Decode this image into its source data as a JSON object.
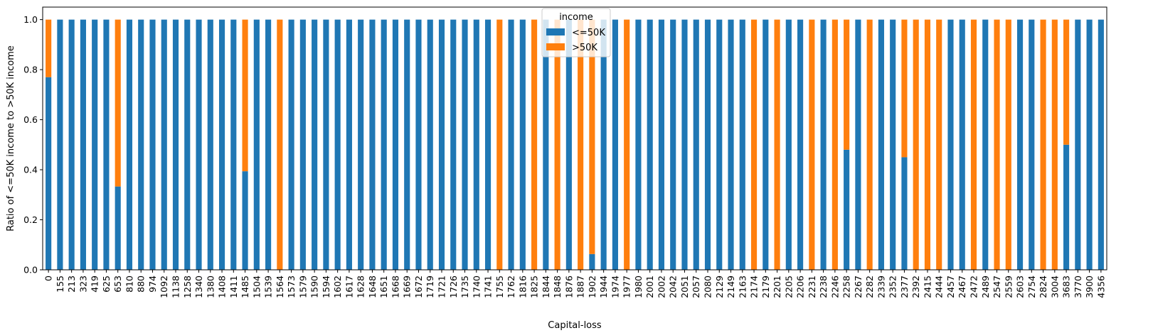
{
  "chart_data": {
    "type": "bar",
    "stacked": true,
    "xlabel": "Capital-loss",
    "ylabel": "Ratio of <=50K income to >50K income",
    "ylim": [
      0,
      1.05
    ],
    "yticks": [
      "0.0",
      "0.2",
      "0.4",
      "0.6",
      "0.8",
      "1.0"
    ],
    "grid": false,
    "legend": {
      "title": "income",
      "placement": "top-center"
    },
    "colors": {
      "le50k": "#1f77b4",
      "gt50k": "#ff7f0e"
    },
    "categories": [
      "0",
      "155",
      "213",
      "323",
      "419",
      "625",
      "653",
      "810",
      "880",
      "974",
      "1092",
      "1138",
      "1258",
      "1340",
      "1380",
      "1408",
      "1411",
      "1485",
      "1504",
      "1539",
      "1564",
      "1573",
      "1579",
      "1590",
      "1594",
      "1602",
      "1617",
      "1628",
      "1648",
      "1651",
      "1668",
      "1669",
      "1672",
      "1719",
      "1721",
      "1726",
      "1735",
      "1740",
      "1741",
      "1755",
      "1762",
      "1816",
      "1825",
      "1844",
      "1848",
      "1876",
      "1887",
      "1902",
      "1944",
      "1974",
      "1977",
      "1980",
      "2001",
      "2002",
      "2042",
      "2051",
      "2057",
      "2080",
      "2129",
      "2149",
      "2163",
      "2174",
      "2179",
      "2201",
      "2205",
      "2206",
      "2231",
      "2238",
      "2246",
      "2258",
      "2267",
      "2282",
      "2339",
      "2352",
      "2377",
      "2392",
      "2415",
      "2444",
      "2457",
      "2467",
      "2472",
      "2489",
      "2547",
      "2559",
      "2603",
      "2754",
      "2824",
      "3004",
      "3683",
      "3770",
      "3900",
      "4356"
    ],
    "series": [
      {
        "name": "<=50K",
        "values": [
          0.77,
          1,
          1,
          1,
          1,
          1,
          0.333,
          1,
          1,
          1,
          1,
          1,
          1,
          1,
          1,
          1,
          1,
          0.394,
          1,
          1,
          0,
          1,
          1,
          1,
          1,
          1,
          1,
          1,
          1,
          1,
          1,
          1,
          1,
          1,
          1,
          1,
          1,
          1,
          1,
          0,
          1,
          1,
          0,
          1,
          0,
          1,
          0,
          0.063,
          1,
          1,
          0,
          1,
          1,
          1,
          1,
          1,
          1,
          1,
          1,
          1,
          1,
          0,
          1,
          0,
          1,
          1,
          0,
          1,
          0,
          0.48,
          1,
          0,
          1,
          1,
          0.45,
          0,
          0,
          0,
          1,
          1,
          0,
          1,
          0,
          0,
          1,
          1,
          0,
          0,
          0.5,
          1,
          1,
          1
        ]
      },
      {
        "name": ">50K",
        "values": [
          0.23,
          0,
          0,
          0,
          0,
          0,
          0.667,
          0,
          0,
          0,
          0,
          0,
          0,
          0,
          0,
          0,
          0,
          0.606,
          0,
          0,
          1,
          0,
          0,
          0,
          0,
          0,
          0,
          0,
          0,
          0,
          0,
          0,
          0,
          0,
          0,
          0,
          0,
          0,
          0,
          1,
          0,
          0,
          1,
          0,
          1,
          0,
          1,
          0.937,
          0,
          0,
          1,
          0,
          0,
          0,
          0,
          0,
          0,
          0,
          0,
          0,
          0,
          1,
          0,
          1,
          0,
          0,
          1,
          0,
          1,
          0.52,
          0,
          1,
          0,
          0,
          0.55,
          1,
          1,
          1,
          0,
          0,
          1,
          0,
          1,
          1,
          0,
          0,
          1,
          1,
          0.5,
          0,
          0,
          0
        ]
      }
    ]
  }
}
